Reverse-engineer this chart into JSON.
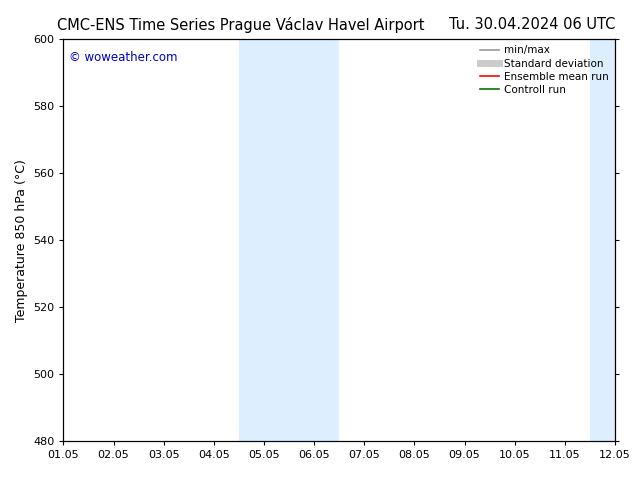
{
  "title_left": "CMC-ENS Time Series Prague Václav Havel Airport",
  "title_right": "Tu. 30.04.2024 06 UTC",
  "ylabel": "Temperature 850 hPa (°C)",
  "watermark": "© woweather.com",
  "xlim_dates": [
    "01.05",
    "02.05",
    "03.05",
    "04.05",
    "05.05",
    "06.05",
    "07.05",
    "08.05",
    "09.05",
    "10.05",
    "11.05",
    "12.05"
  ],
  "ylim": [
    480,
    600
  ],
  "yticks": [
    480,
    500,
    520,
    540,
    560,
    580,
    600
  ],
  "xtick_positions": [
    0,
    1,
    2,
    3,
    4,
    5,
    6,
    7,
    8,
    9,
    10,
    11
  ],
  "xlim": [
    0,
    11
  ],
  "shaded_regions": [
    {
      "xstart": 3.5,
      "xend": 5.5,
      "color": "#ddeeff"
    },
    {
      "xstart": 10.5,
      "xend": 12.0,
      "color": "#ddeeff"
    }
  ],
  "legend_items": [
    {
      "label": "min/max",
      "color": "#999999",
      "lw": 1.2,
      "ls": "-"
    },
    {
      "label": "Standard deviation",
      "color": "#cccccc",
      "lw": 5,
      "ls": "-"
    },
    {
      "label": "Ensemble mean run",
      "color": "#ff0000",
      "lw": 1.2,
      "ls": "-"
    },
    {
      "label": "Controll run",
      "color": "#007700",
      "lw": 1.2,
      "ls": "-"
    }
  ],
  "background_color": "#ffffff",
  "plot_bg_color": "#ffffff",
  "border_color": "#000000",
  "watermark_color": "#0000cc",
  "title_fontsize": 10.5,
  "label_fontsize": 9,
  "tick_fontsize": 8,
  "legend_fontsize": 7.5,
  "watermark_fontsize": 8.5
}
